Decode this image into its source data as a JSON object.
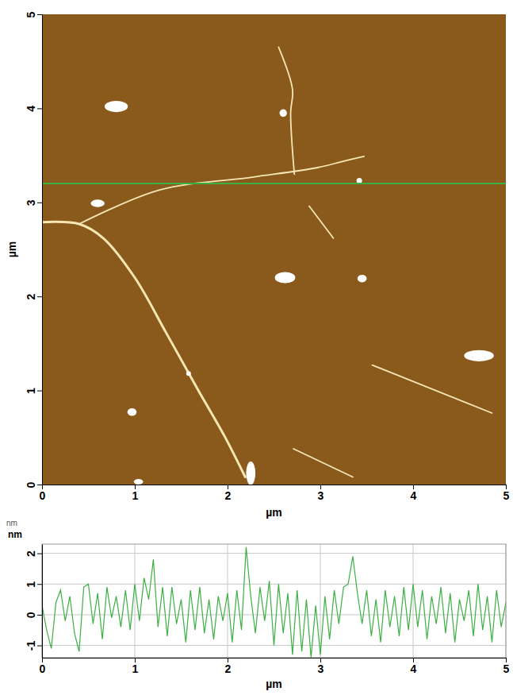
{
  "chart_data": [
    {
      "type": "afm_image",
      "xlabel": "µm",
      "ylabel": "µm",
      "xlim": [
        0,
        5
      ],
      "ylim": [
        0,
        5
      ],
      "xticks": [
        0,
        1,
        2,
        3,
        4,
        5
      ],
      "yticks": [
        0,
        1,
        2,
        3,
        4,
        5
      ],
      "profile_y": 3.2,
      "color": "#3cb043",
      "particles": {
        "x": [
          0.8,
          2.6,
          0.6,
          2.62,
          3.45,
          4.71,
          0.97,
          1.04,
          2.25,
          3.42,
          1.58
        ],
        "y": [
          4.02,
          3.95,
          2.99,
          2.2,
          2.19,
          1.37,
          0.77,
          0.03,
          0.12,
          3.23,
          1.18
        ],
        "width": [
          0.25,
          0.08,
          0.15,
          0.22,
          0.1,
          0.32,
          0.1,
          0.1,
          0.1,
          0.06,
          0.05
        ],
        "height": [
          0.12,
          0.08,
          0.08,
          0.12,
          0.08,
          0.12,
          0.08,
          0.06,
          0.25,
          0.06,
          0.05
        ]
      },
      "fibers": [
        {
          "x": [
            0.0,
            0.4,
            0.66,
            1.0,
            1.34,
            1.68,
            1.97,
            2.19
          ],
          "y": [
            2.79,
            2.77,
            2.62,
            2.2,
            1.61,
            1.01,
            0.51,
            0.08
          ]
        },
        {
          "x": [
            0.4,
            1.26,
            2.28,
            2.97,
            3.22,
            3.47
          ],
          "y": [
            2.77,
            3.13,
            3.27,
            3.37,
            3.43,
            3.49
          ]
        },
        {
          "x": [
            2.55,
            2.7,
            2.68,
            2.72
          ],
          "y": [
            4.65,
            4.2,
            3.95,
            3.3
          ]
        },
        {
          "x": [
            2.71,
            3.35
          ],
          "y": [
            0.38,
            0.08
          ]
        },
        {
          "x": [
            3.56,
            4.85
          ],
          "y": [
            1.27,
            0.76
          ]
        },
        {
          "x": [
            2.88,
            3.14
          ],
          "y": [
            2.96,
            2.62
          ]
        }
      ]
    },
    {
      "type": "line",
      "xlabel": "µm",
      "ylabel": "nm",
      "annotations": [
        "nm"
      ],
      "xlim": [
        0,
        5
      ],
      "ylim": [
        -1.4,
        2.3
      ],
      "xticks": [
        0,
        1,
        2,
        3,
        4,
        5
      ],
      "yticks": [
        -1,
        0,
        1,
        2
      ],
      "grid": true,
      "color": "#3cb043",
      "x": [
        0,
        0.05,
        0.1,
        0.15,
        0.2,
        0.25,
        0.3,
        0.35,
        0.4,
        0.45,
        0.5,
        0.55,
        0.6,
        0.65,
        0.7,
        0.75,
        0.8,
        0.85,
        0.9,
        0.95,
        1,
        1.05,
        1.1,
        1.15,
        1.2,
        1.25,
        1.3,
        1.35,
        1.4,
        1.45,
        1.5,
        1.55,
        1.6,
        1.65,
        1.7,
        1.75,
        1.8,
        1.85,
        1.9,
        1.95,
        2,
        2.05,
        2.1,
        2.15,
        2.2,
        2.25,
        2.3,
        2.35,
        2.4,
        2.45,
        2.5,
        2.55,
        2.6,
        2.65,
        2.7,
        2.75,
        2.8,
        2.85,
        2.9,
        2.95,
        3,
        3.05,
        3.1,
        3.15,
        3.2,
        3.25,
        3.3,
        3.35,
        3.4,
        3.45,
        3.5,
        3.55,
        3.6,
        3.65,
        3.7,
        3.75,
        3.8,
        3.85,
        3.9,
        3.95,
        4,
        4.05,
        4.1,
        4.15,
        4.2,
        4.25,
        4.3,
        4.35,
        4.4,
        4.45,
        4.5,
        4.55,
        4.6,
        4.65,
        4.7,
        4.75,
        4.8,
        4.85,
        4.9,
        4.95,
        5
      ],
      "values": [
        0.3,
        -0.5,
        -1.1,
        0.4,
        0.8,
        -0.2,
        0.6,
        -0.6,
        -1.2,
        0.9,
        1.0,
        -0.3,
        0.7,
        -0.8,
        0.9,
        -0.1,
        0.6,
        -0.4,
        0.8,
        -0.5,
        1.0,
        -0.2,
        1.2,
        0.5,
        1.8,
        -0.4,
        0.9,
        -0.7,
        0.9,
        -0.3,
        0.5,
        -0.9,
        0.8,
        -0.5,
        0.9,
        -0.6,
        0.5,
        -0.8,
        0.6,
        -0.2,
        0.7,
        -0.9,
        0.8,
        -0.5,
        2.2,
        0.6,
        -0.6,
        0.9,
        -0.2,
        1.1,
        -1.0,
        1.0,
        -0.6,
        0.7,
        -1.3,
        0.8,
        -1.2,
        0.5,
        -1.4,
        0.3,
        -1.3,
        0.6,
        -0.8,
        0.8,
        -0.3,
        0.9,
        1.0,
        1.9,
        0.7,
        -0.3,
        0.8,
        -0.7,
        0.5,
        -0.9,
        0.8,
        -0.4,
        0.6,
        -0.7,
        0.9,
        -0.5,
        1.0,
        -0.4,
        0.8,
        -0.8,
        0.6,
        -0.3,
        0.9,
        -0.6,
        0.7,
        -0.9,
        0.5,
        -0.2,
        0.8,
        -0.7,
        1.0,
        -0.5,
        0.6,
        -0.9,
        0.8,
        -0.4,
        0.4
      ]
    }
  ]
}
